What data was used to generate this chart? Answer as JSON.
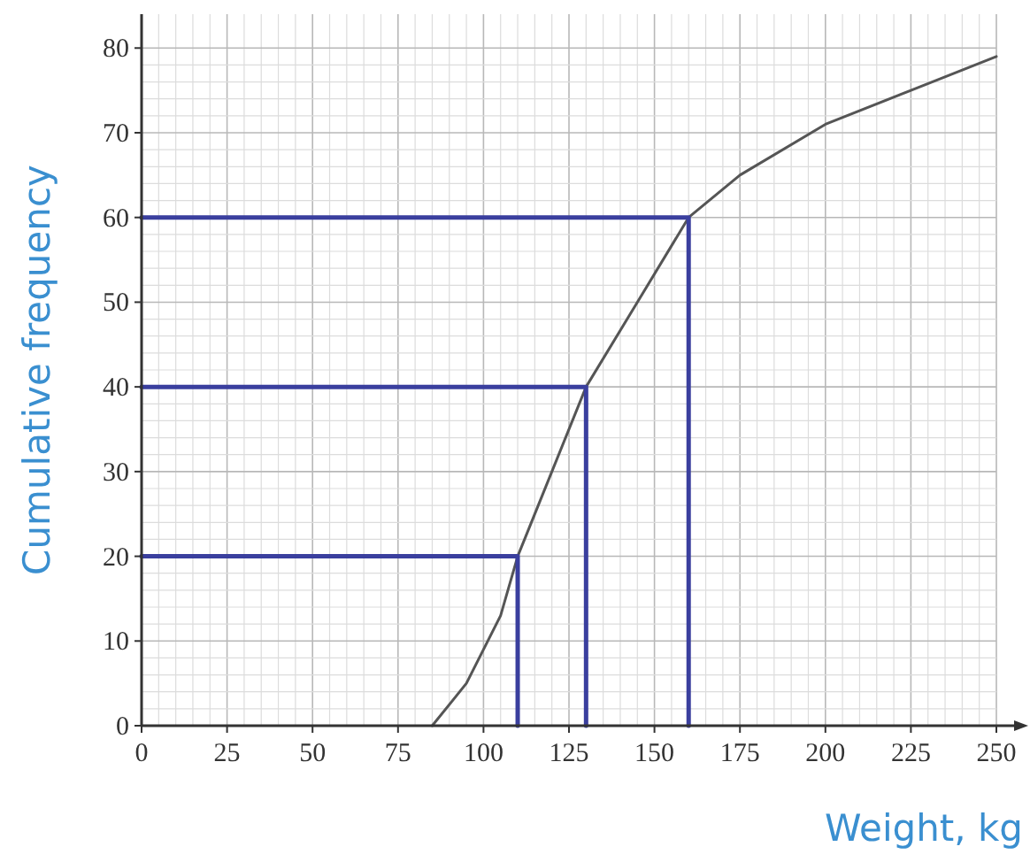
{
  "chart_data": {
    "type": "line",
    "xlabel": "Weight, kg",
    "ylabel": "Cumulative frequency",
    "xlim": [
      0,
      250
    ],
    "ylim": [
      0,
      84
    ],
    "xticks": [
      0,
      25,
      50,
      75,
      100,
      125,
      150,
      175,
      200,
      225,
      250
    ],
    "yticks": [
      0,
      10,
      20,
      30,
      40,
      50,
      60,
      70,
      80
    ],
    "grid": true,
    "series": [
      {
        "color": "#555555",
        "x": [
          85,
          95,
          105,
          110,
          120,
          130,
          145,
          160,
          175,
          200,
          225,
          250
        ],
        "values": [
          0,
          5,
          13,
          20,
          30,
          40,
          50,
          60,
          65,
          71,
          75,
          79
        ]
      },
      {
        "color": "#3a3f9e",
        "x": [
          0,
          110,
          110
        ],
        "values": [
          20,
          20,
          0
        ]
      },
      {
        "color": "#3a3f9e",
        "x": [
          0,
          130,
          130
        ],
        "values": [
          40,
          40,
          0
        ]
      },
      {
        "color": "#3a3f9e",
        "x": [
          0,
          160,
          160
        ],
        "values": [
          60,
          60,
          0
        ]
      }
    ]
  }
}
